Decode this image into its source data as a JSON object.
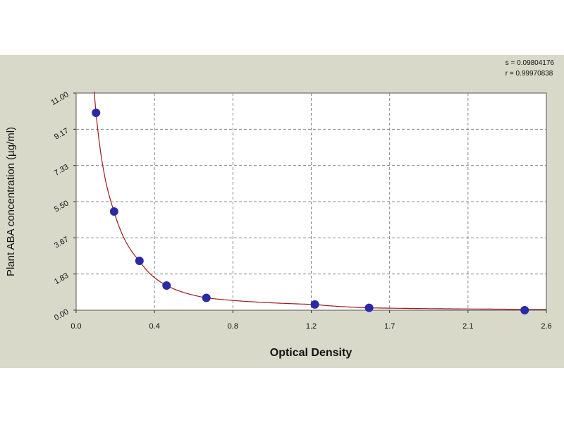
{
  "stats": {
    "s_line": "s = 0.09804176",
    "r_line": "r = 0.99970838"
  },
  "chart_data": {
    "type": "scatter",
    "title": "",
    "xlabel": "Optical Density",
    "ylabel": "Plant ABA concentration (µg/ml)",
    "xlim": [
      0.0,
      2.6
    ],
    "ylim": [
      0.0,
      11.0
    ],
    "x_ticks": [
      "0.0",
      "0.4",
      "0.8",
      "1.2",
      "1.7",
      "2.1",
      "2.6"
    ],
    "y_ticks": [
      "0.00",
      "1.83",
      "3.67",
      "5.50",
      "7.33",
      "9.17",
      "11.00"
    ],
    "grid": true,
    "points": [
      {
        "x": 0.11,
        "y": 10.0
      },
      {
        "x": 0.21,
        "y": 5.0
      },
      {
        "x": 0.35,
        "y": 2.5
      },
      {
        "x": 0.5,
        "y": 1.25
      },
      {
        "x": 0.72,
        "y": 0.625
      },
      {
        "x": 1.32,
        "y": 0.29
      },
      {
        "x": 1.62,
        "y": 0.12
      },
      {
        "x": 2.48,
        "y": 0.0
      }
    ],
    "colors": {
      "point": "#2a2aa8",
      "curve": "#9a1b1b",
      "grid": "#888888",
      "frame_bg": "#d9d9c9",
      "plot_bg": "#ffffff"
    }
  }
}
